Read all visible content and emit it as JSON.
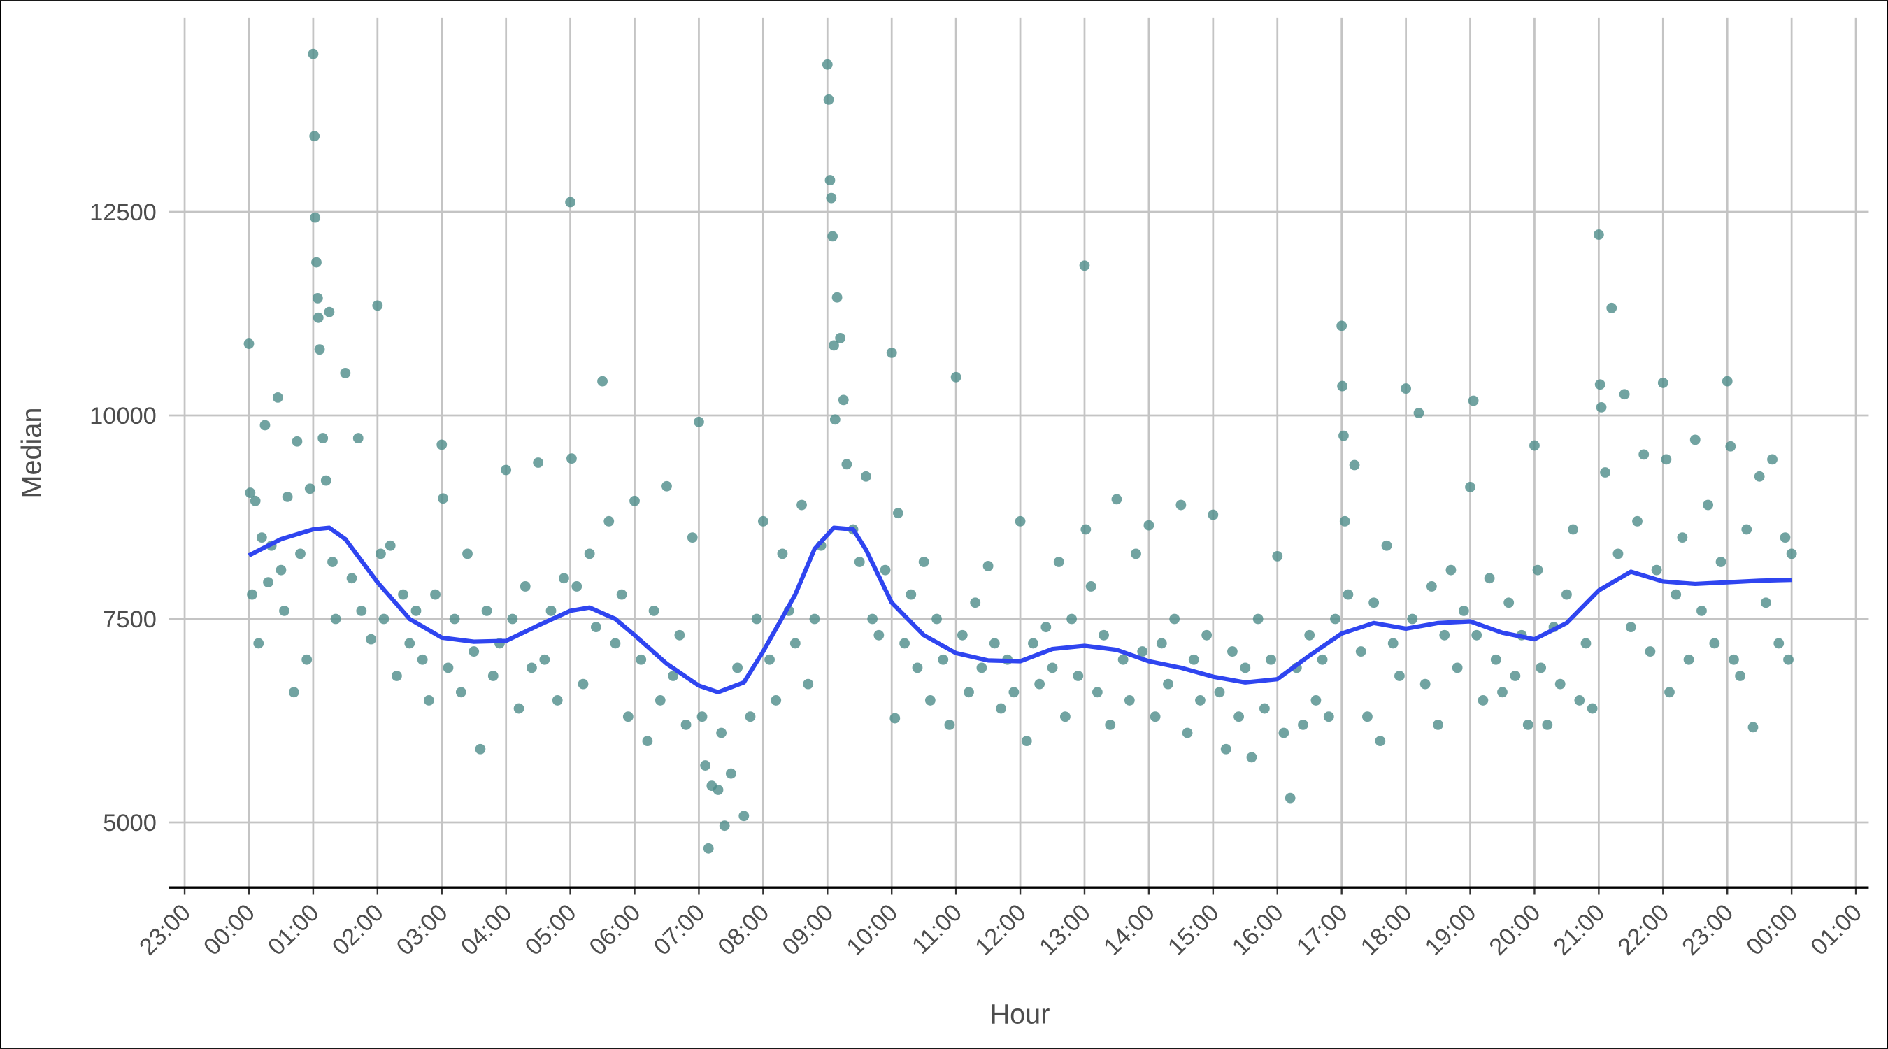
{
  "chart_data": {
    "type": "scatter",
    "xlabel": "Hour",
    "ylabel": "Median",
    "xlim": [
      -1.25,
      25.2
    ],
    "ylim": [
      4200,
      14880
    ],
    "xticks": [
      {
        "value": -1,
        "label": "23:00"
      },
      {
        "value": 0,
        "label": "00:00"
      },
      {
        "value": 1,
        "label": "01:00"
      },
      {
        "value": 2,
        "label": "02:00"
      },
      {
        "value": 3,
        "label": "03:00"
      },
      {
        "value": 4,
        "label": "04:00"
      },
      {
        "value": 5,
        "label": "05:00"
      },
      {
        "value": 6,
        "label": "06:00"
      },
      {
        "value": 7,
        "label": "07:00"
      },
      {
        "value": 8,
        "label": "08:00"
      },
      {
        "value": 9,
        "label": "09:00"
      },
      {
        "value": 10,
        "label": "10:00"
      },
      {
        "value": 11,
        "label": "11:00"
      },
      {
        "value": 12,
        "label": "12:00"
      },
      {
        "value": 13,
        "label": "13:00"
      },
      {
        "value": 14,
        "label": "14:00"
      },
      {
        "value": 15,
        "label": "15:00"
      },
      {
        "value": 16,
        "label": "16:00"
      },
      {
        "value": 17,
        "label": "17:00"
      },
      {
        "value": 18,
        "label": "18:00"
      },
      {
        "value": 19,
        "label": "19:00"
      },
      {
        "value": 20,
        "label": "20:00"
      },
      {
        "value": 21,
        "label": "21:00"
      },
      {
        "value": 22,
        "label": "22:00"
      },
      {
        "value": 23,
        "label": "23:00"
      },
      {
        "value": 24,
        "label": "00:00"
      },
      {
        "value": 25,
        "label": "01:00"
      }
    ],
    "yticks": [
      5000,
      7500,
      10000,
      12500
    ],
    "grid": true,
    "points": {
      "color": "#4d8c8a",
      "x": [
        0.0,
        0.02,
        0.05,
        0.1,
        0.15,
        0.2,
        0.25,
        0.3,
        0.35,
        0.45,
        0.5,
        0.55,
        0.6,
        0.7,
        0.75,
        0.8,
        0.9,
        0.95,
        1.0,
        1.02,
        1.03,
        1.05,
        1.07,
        1.08,
        1.1,
        1.15,
        1.2,
        1.25,
        1.3,
        1.35,
        1.5,
        1.6,
        1.7,
        1.75,
        1.9,
        2.0,
        2.05,
        2.1,
        2.2,
        2.3,
        2.4,
        2.5,
        2.6,
        2.7,
        2.8,
        2.9,
        3.0,
        3.02,
        3.1,
        3.2,
        3.3,
        3.4,
        3.5,
        3.6,
        3.7,
        3.8,
        3.9,
        4.0,
        4.1,
        4.2,
        4.3,
        4.4,
        4.5,
        4.6,
        4.7,
        4.8,
        4.9,
        5.0,
        5.02,
        5.1,
        5.2,
        5.3,
        5.4,
        5.5,
        5.6,
        5.7,
        5.8,
        5.9,
        6.0,
        6.1,
        6.2,
        6.3,
        6.4,
        6.5,
        6.6,
        6.7,
        6.8,
        6.9,
        7.0,
        7.05,
        7.1,
        7.15,
        7.2,
        7.3,
        7.35,
        7.4,
        7.5,
        7.6,
        7.7,
        7.8,
        7.9,
        8.0,
        8.1,
        8.2,
        8.3,
        8.4,
        8.5,
        8.6,
        8.7,
        8.8,
        8.9,
        9.0,
        9.02,
        9.04,
        9.06,
        9.08,
        9.1,
        9.12,
        9.15,
        9.2,
        9.25,
        9.3,
        9.4,
        9.5,
        9.6,
        9.7,
        9.8,
        9.9,
        10.0,
        10.05,
        10.1,
        10.2,
        10.3,
        10.4,
        10.5,
        10.6,
        10.7,
        10.8,
        10.9,
        11.0,
        11.1,
        11.2,
        11.3,
        11.4,
        11.5,
        11.6,
        11.7,
        11.8,
        11.9,
        12.0,
        12.1,
        12.2,
        12.3,
        12.4,
        12.5,
        12.6,
        12.7,
        12.8,
        12.9,
        13.0,
        13.02,
        13.1,
        13.2,
        13.3,
        13.4,
        13.5,
        13.6,
        13.7,
        13.8,
        13.9,
        14.0,
        14.1,
        14.2,
        14.3,
        14.4,
        14.5,
        14.6,
        14.7,
        14.8,
        14.9,
        15.0,
        15.1,
        15.2,
        15.3,
        15.4,
        15.5,
        15.6,
        15.7,
        15.8,
        15.9,
        16.0,
        16.1,
        16.2,
        16.3,
        16.4,
        16.5,
        16.6,
        16.7,
        16.8,
        16.9,
        17.0,
        17.01,
        17.03,
        17.05,
        17.1,
        17.2,
        17.3,
        17.4,
        17.5,
        17.6,
        17.7,
        17.8,
        17.9,
        18.0,
        18.1,
        18.2,
        18.3,
        18.4,
        18.5,
        18.6,
        18.7,
        18.8,
        18.9,
        19.0,
        19.05,
        19.1,
        19.2,
        19.3,
        19.4,
        19.5,
        19.6,
        19.7,
        19.8,
        19.9,
        20.0,
        20.05,
        20.1,
        20.2,
        20.3,
        20.4,
        20.5,
        20.6,
        20.7,
        20.8,
        20.9,
        21.0,
        21.02,
        21.04,
        21.1,
        21.2,
        21.3,
        21.4,
        21.5,
        21.6,
        21.7,
        21.8,
        21.9,
        22.0,
        22.05,
        22.1,
        22.2,
        22.3,
        22.4,
        22.5,
        22.6,
        22.7,
        22.8,
        22.9,
        23.0,
        23.05,
        23.1,
        23.2,
        23.3,
        23.4,
        23.5,
        23.6,
        23.7,
        23.8,
        23.9,
        23.95,
        24.0
      ],
      "y": [
        10880,
        9050,
        7800,
        8950,
        7200,
        8500,
        9880,
        7950,
        8400,
        10220,
        8100,
        7600,
        9000,
        6600,
        9680,
        8300,
        7000,
        9100,
        14440,
        13430,
        12430,
        11880,
        11440,
        11200,
        10810,
        9720,
        9200,
        11270,
        8200,
        7500,
        10520,
        8000,
        9720,
        7600,
        7250,
        11350,
        8300,
        7500,
        8400,
        6800,
        7800,
        7200,
        7600,
        7000,
        6500,
        7800,
        9640,
        8980,
        6900,
        7500,
        6600,
        8300,
        7100,
        5900,
        7600,
        6800,
        7200,
        9330,
        7500,
        6400,
        7900,
        6900,
        9420,
        7000,
        7600,
        6500,
        8000,
        12620,
        9470,
        7900,
        6700,
        8300,
        7400,
        10420,
        8700,
        7200,
        7800,
        6300,
        8950,
        7000,
        6000,
        7600,
        6500,
        9130,
        6800,
        7300,
        6200,
        8500,
        9920,
        6300,
        5700,
        4680,
        5450,
        5400,
        6100,
        4960,
        5600,
        6900,
        5080,
        6300,
        7500,
        8700,
        7000,
        6500,
        8300,
        7600,
        7200,
        8900,
        6700,
        7500,
        8400,
        14310,
        13880,
        12890,
        12670,
        12200,
        10860,
        9950,
        11450,
        10950,
        10190,
        9400,
        8600,
        8200,
        9250,
        7500,
        7300,
        8100,
        10770,
        6280,
        8800,
        7200,
        7800,
        6900,
        8200,
        6500,
        7500,
        7000,
        6200,
        10470,
        7300,
        6600,
        7700,
        6900,
        8150,
        7200,
        6400,
        7000,
        6600,
        8700,
        6000,
        7200,
        6700,
        7400,
        6900,
        8200,
        6300,
        7500,
        6800,
        11840,
        8600,
        7900,
        6600,
        7300,
        6200,
        8970,
        7000,
        6500,
        8300,
        7100,
        8650,
        6300,
        7200,
        6700,
        7500,
        8900,
        6100,
        7000,
        6500,
        7300,
        8780,
        6600,
        5900,
        7100,
        6300,
        6900,
        5800,
        7500,
        6400,
        7000,
        8270,
        6100,
        5300,
        6900,
        6200,
        7300,
        6500,
        7000,
        6300,
        7500,
        11100,
        10360,
        9750,
        8700,
        7800,
        9390,
        7100,
        6300,
        7700,
        6000,
        8400,
        7200,
        6800,
        10330,
        7500,
        10030,
        6700,
        7900,
        6200,
        7300,
        8100,
        6900,
        7600,
        9120,
        10180,
        7300,
        6500,
        8000,
        7000,
        6600,
        7700,
        6800,
        7300,
        6200,
        9630,
        8100,
        6900,
        6200,
        7400,
        6700,
        7800,
        8600,
        6500,
        7200,
        6400,
        12220,
        10380,
        10100,
        9300,
        11320,
        8300,
        10260,
        7400,
        8700,
        9520,
        7100,
        8100,
        10400,
        9460,
        6600,
        7800,
        8500,
        7000,
        9700,
        7600,
        8900,
        7200,
        8200,
        10420,
        9620,
        7000,
        6800,
        8600,
        6170,
        9250,
        7700,
        9460,
        7200,
        8500,
        7000,
        8300
      ]
    },
    "smooth": {
      "color": "#2f45f0",
      "x": [
        0,
        0.5,
        1,
        1.25,
        1.5,
        2,
        2.5,
        3,
        3.5,
        4,
        4.5,
        5,
        5.3,
        5.7,
        6,
        6.5,
        7,
        7.3,
        7.7,
        8,
        8.5,
        8.8,
        9.1,
        9.4,
        9.6,
        10,
        10.5,
        11,
        11.5,
        12,
        12.5,
        13,
        13.5,
        14,
        14.5,
        15,
        15.5,
        16,
        16.5,
        17,
        17.5,
        18,
        18.5,
        19,
        19.5,
        20,
        20.5,
        21,
        21.5,
        22,
        22.5,
        23,
        23.5,
        24
      ],
      "y": [
        8280,
        8480,
        8600,
        8620,
        8480,
        7950,
        7500,
        7270,
        7220,
        7230,
        7420,
        7600,
        7640,
        7500,
        7300,
        6950,
        6680,
        6600,
        6720,
        7100,
        7800,
        8360,
        8620,
        8600,
        8350,
        7700,
        7300,
        7080,
        6990,
        6980,
        7130,
        7170,
        7120,
        6980,
        6900,
        6790,
        6720,
        6760,
        7050,
        7320,
        7450,
        7380,
        7450,
        7470,
        7330,
        7250,
        7450,
        7850,
        8080,
        7960,
        7930,
        7950,
        7970,
        7980
      ]
    }
  }
}
